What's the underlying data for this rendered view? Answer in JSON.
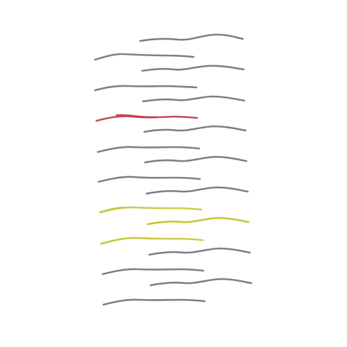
{
  "artwork": {
    "background": "#ffffff",
    "palette": {
      "gray": "#6f7480",
      "red": "#c0394a",
      "yellow": "#c8c83a"
    },
    "strokes": [
      {
        "color": "gray"
      },
      {
        "color": "gray"
      },
      {
        "color": "gray"
      },
      {
        "color": "gray"
      },
      {
        "color": "gray"
      },
      {
        "color": "red"
      },
      {
        "color": "gray"
      },
      {
        "color": "gray"
      },
      {
        "color": "gray"
      },
      {
        "color": "gray"
      },
      {
        "color": "gray"
      },
      {
        "color": "yellow"
      },
      {
        "color": "yellow"
      },
      {
        "color": "yellow"
      },
      {
        "color": "gray"
      },
      {
        "color": "gray"
      },
      {
        "color": "gray"
      },
      {
        "color": "gray"
      }
    ]
  }
}
